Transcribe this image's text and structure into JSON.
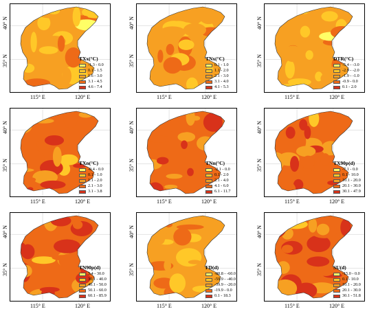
{
  "axes": {
    "lat_labels": [
      "40° N",
      "35° N"
    ],
    "lon_labels": [
      "115° E",
      "120° E"
    ]
  },
  "panels": [
    {
      "title": "TXx(°C)",
      "legend": [
        "-1.3 - 0.0",
        "0.1 - 1.5",
        "1.6 - 3.0",
        "3.1 - 4.5",
        "4.6 - 7.4"
      ],
      "colors": [
        "#ffff66",
        "#ffc828",
        "#f7a022",
        "#ee6a17",
        "#d8321a"
      ]
    },
    {
      "title": "TNx(°C)",
      "legend": [
        "0.1 - 1.0",
        "1.1 - 2.0",
        "2.1 - 3.0",
        "3.1 - 4.0",
        "4.1 - 5.3"
      ],
      "colors": [
        "#ffff66",
        "#ffc828",
        "#f7a022",
        "#ee6a17",
        "#d8321a"
      ]
    },
    {
      "title": "DTR(°C)",
      "legend": [
        "-5.4 - -3.0",
        "-2.9 - -2.0",
        "-1.9 - -1.0",
        "-0.9 - 0.0",
        "0.1 - 2.0"
      ],
      "colors": [
        "#ffff66",
        "#ffc828",
        "#f7a022",
        "#ee6a17",
        "#d8321a"
      ]
    },
    {
      "title": "TXn(°C)",
      "legend": [
        "-0.4 - 0.0",
        "0.1 - 1.0",
        "1.1 - 2.0",
        "2.1 - 3.0",
        "3.1 - 3.8"
      ],
      "colors": [
        "#ffff66",
        "#ffc828",
        "#f7a022",
        "#ee6a17",
        "#d8321a"
      ]
    },
    {
      "title": "TNn(°C)",
      "legend": [
        "-2.1 - 0.0",
        "0.1 - 2.0",
        "2.1 - 4.0",
        "4.1 - 6.0",
        "6.1 - 11.7"
      ],
      "colors": [
        "#ffff66",
        "#ffc828",
        "#f7a022",
        "#ee6a17",
        "#d8321a"
      ]
    },
    {
      "title": "TX90p(d)",
      "legend": [
        "-7.1 - 0.0",
        "0.1 - 10.0",
        "10.1 - 20.0",
        "20.1 - 30.0",
        "30.1 - 47.9"
      ],
      "colors": [
        "#ffff66",
        "#ffc828",
        "#f7a022",
        "#ee6a17",
        "#d8321a"
      ]
    },
    {
      "title": "TN90p(d)",
      "legend": [
        "5.4 - 30.0",
        "30.1 - 40.0",
        "40.1 - 50.0",
        "50.1 - 60.0",
        "60.1 - 85.9"
      ],
      "colors": [
        "#ffff66",
        "#ffc828",
        "#f7a022",
        "#ee6a17",
        "#d8321a"
      ]
    },
    {
      "title": "FD(d)",
      "legend": [
        "-88.8 - -60.0",
        "-59.9 - -40.0",
        "-39.9 - -20.0",
        "-19.9 - 0.0",
        "0.1 - 18.3"
      ],
      "colors": [
        "#ffff66",
        "#ffc828",
        "#f7a022",
        "#ee6a17",
        "#d8321a"
      ]
    },
    {
      "title": "SU(d)",
      "legend": [
        "-15.0 - 0.0",
        "0.1 - 10.0",
        "10.1 - 20.0",
        "20.1 - 30.0",
        "30.1 - 51.8"
      ],
      "colors": [
        "#ffff66",
        "#ffc828",
        "#f7a022",
        "#ee6a17",
        "#d8321a"
      ]
    }
  ]
}
